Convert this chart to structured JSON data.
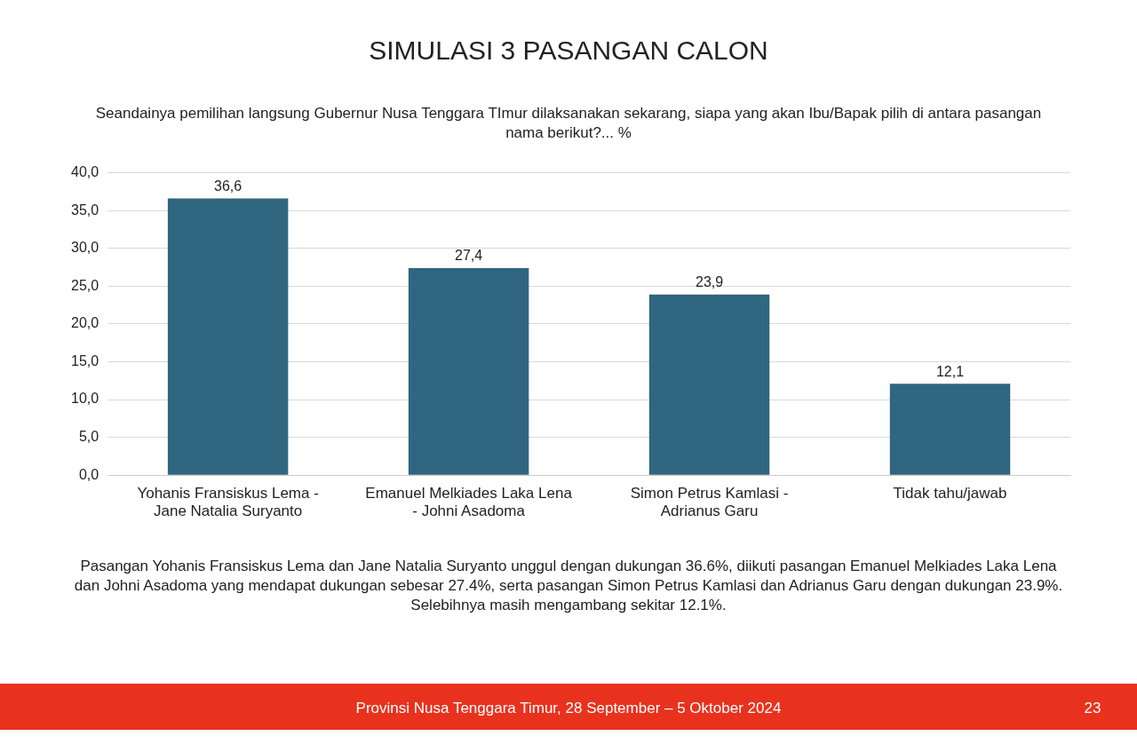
{
  "chart_data": {
    "type": "bar",
    "title": "SIMULASI 3 PASANGAN CALON",
    "subtitle": "Seandainya pemilihan langsung Gubernur Nusa Tenggara TImur dilaksanakan sekarang, siapa yang akan Ibu/Bapak pilih di antara pasangan nama berikut?... %",
    "categories": [
      "Yohanis Fransiskus Lema - Jane Natalia Suryanto",
      "Emanuel Melkiades Laka Lena - Johni Asadoma",
      "Simon Petrus Kamlasi - Adrianus Garu",
      "Tidak tahu/jawab"
    ],
    "values": [
      36.6,
      27.4,
      23.9,
      12.1
    ],
    "value_labels": [
      "36,6",
      "27,4",
      "23,9",
      "12,1"
    ],
    "color": "#30667f",
    "ylim": [
      0,
      40
    ],
    "yticks": [
      {
        "value": 0,
        "label": "0,0"
      },
      {
        "value": 5,
        "label": "5,0"
      },
      {
        "value": 10,
        "label": "10,0"
      },
      {
        "value": 15,
        "label": "15,0"
      },
      {
        "value": 20,
        "label": "20,0"
      },
      {
        "value": 25,
        "label": "25,0"
      },
      {
        "value": 30,
        "label": "30,0"
      },
      {
        "value": 35,
        "label": "35,0"
      },
      {
        "value": 40,
        "label": "40,0"
      }
    ],
    "grid": "y",
    "annotations": [
      "Pasangan Yohanis Fransiskus Lema dan Jane Natalia Suryanto unggul dengan dukungan 36.6%, diikuti pasangan Emanuel Melkiades Laka Lena dan Johni Asadoma yang mendapat dukungan sebesar 27.4%, serta pasangan Simon Petrus Kamlasi dan Adrianus Garu dengan dukungan 23.9%. Selebihnya masih mengambang sekitar 12.1%.",
      "Provinsi Nusa Tenggara Timur, 28 September – 5 Oktober 2024",
      "23"
    ]
  }
}
